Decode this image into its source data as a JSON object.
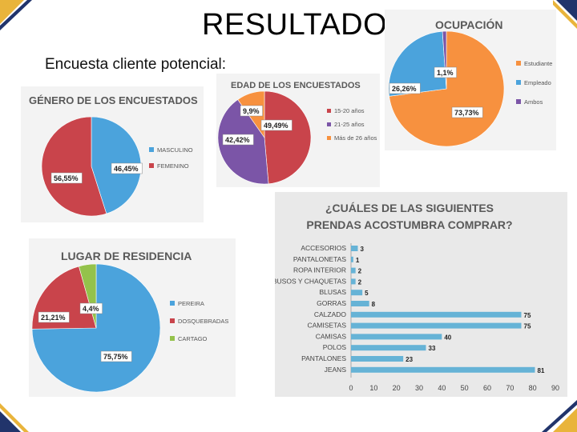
{
  "slide": {
    "title": "RESULTADOS",
    "subtitle": "Encuesta cliente potencial:"
  },
  "colors": {
    "stripe_gold": "#e9b43b",
    "stripe_navy": "#21346b",
    "blue": "#4ba3dc",
    "red": "#c9444b",
    "orange": "#f7913f",
    "purple": "#7b55a7",
    "green": "#94c24b",
    "bar": "#66b3d6"
  },
  "chart_data": [
    {
      "id": "genero",
      "type": "pie",
      "title": "GÉNERO DE LOS ENCUESTADOS",
      "categories": [
        "MASCULINO",
        "FEMENINO"
      ],
      "values": [
        46.45,
        56.55
      ],
      "labels": [
        "46,45%",
        "56,55%"
      ],
      "colors": [
        "#4ba3dc",
        "#c9444b"
      ],
      "legend": "right"
    },
    {
      "id": "edad",
      "type": "pie",
      "title": "EDAD DE LOS ENCUESTADOS",
      "categories": [
        "15-20 años",
        "21-25 años",
        "Más de 26 años"
      ],
      "values": [
        49.49,
        42.42,
        9.9
      ],
      "labels": [
        "49,49%",
        "42,42%",
        "9,9%"
      ],
      "colors": [
        "#c9444b",
        "#7b55a7",
        "#f7913f"
      ],
      "legend": "right"
    },
    {
      "id": "ocupacion",
      "type": "pie",
      "title": "OCUPACIÓN",
      "categories": [
        "Estudiante",
        "Empleado",
        "Ambos"
      ],
      "values": [
        73.73,
        26.26,
        1.1
      ],
      "labels": [
        "73,73%",
        "26,26%",
        "1,1%"
      ],
      "colors": [
        "#f7913f",
        "#4ba3dc",
        "#7b55a7"
      ],
      "legend": "right"
    },
    {
      "id": "residencia",
      "type": "pie",
      "title": "LUGAR DE RESIDENCIA",
      "categories": [
        "PEREIRA",
        "DOSQUEBRADAS",
        "CARTAGO"
      ],
      "values": [
        75.75,
        21.21,
        4.4
      ],
      "labels": [
        "75,75%",
        "21,21%",
        "4,4%"
      ],
      "colors": [
        "#4ba3dc",
        "#c9444b",
        "#94c24b"
      ],
      "legend": "right"
    },
    {
      "id": "prendas",
      "type": "bar",
      "orientation": "horizontal",
      "title": "¿CUÁLES DE LAS SIGUIENTES PRENDAS ACOSTUMBRA COMPRAR?",
      "title_lines": [
        "¿CUÁLES DE LAS SIGUIENTES",
        "PRENDAS ACOSTUMBRA  COMPRAR?"
      ],
      "categories": [
        "ACCESORIOS",
        "PANTALONETAS",
        "ROPA INTERIOR",
        "BUSOS Y CHAQUETAS",
        "BLUSAS",
        "GORRAS",
        "CALZADO",
        "CAMISETAS",
        "CAMISAS",
        "POLOS",
        "PANTALONES",
        "JEANS"
      ],
      "values": [
        3,
        1,
        2,
        2,
        5,
        8,
        75,
        75,
        40,
        33,
        23,
        81
      ],
      "xlim": [
        0,
        90
      ],
      "ticks": [
        "0",
        "10",
        "20",
        "30",
        "40",
        "50",
        "60",
        "70",
        "80",
        "90"
      ]
    }
  ]
}
